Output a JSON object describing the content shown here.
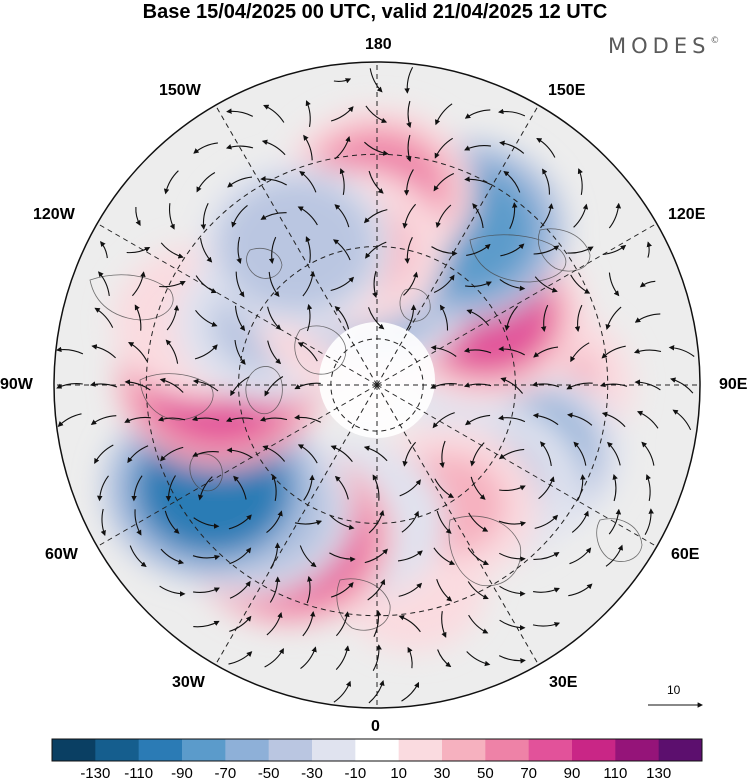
{
  "title": "Base 15/04/2025 00 UTC, valid 21/04/2025 12 UTC",
  "brand": {
    "name": "MODES",
    "mark": "©"
  },
  "longitude_labels": {
    "n180": "180",
    "e150": "150E",
    "e120": "120E",
    "e90": "90E",
    "e60": "60E",
    "e30": "30E",
    "n0": "0",
    "w30": "30W",
    "w60": "60W",
    "w90": "90W",
    "w120": "120W",
    "w150": "150W"
  },
  "reference_vector": {
    "value": "10"
  },
  "colorbar": {
    "ticks": [
      "-130",
      "-110",
      "-90",
      "-70",
      "-50",
      "-30",
      "-10",
      "10",
      "30",
      "50",
      "70",
      "90",
      "110",
      "130"
    ],
    "colors": [
      "#0a3f63",
      "#155e8e",
      "#2b7bb5",
      "#5b9bcb",
      "#8eb0d8",
      "#bac6e1",
      "#e0e3ef",
      "#ffffff",
      "#fadbe0",
      "#f6b1bf",
      "#ee82a7",
      "#e2529a",
      "#c92686",
      "#951479",
      "#5c0f6e"
    ]
  },
  "anomaly_cells": [
    {
      "lon": -150,
      "lat": 55,
      "value": -45
    },
    {
      "lon": -170,
      "lat": 60,
      "value": 35
    },
    {
      "lon": 180,
      "lat": 48,
      "value": 50
    },
    {
      "lon": 152,
      "lat": 52,
      "value": -90
    },
    {
      "lon": 178,
      "lat": 68,
      "value": -55
    },
    {
      "lon": -160,
      "lat": 73,
      "value": 40
    },
    {
      "lon": 123,
      "lat": 62,
      "value": 70
    },
    {
      "lon": 138,
      "lat": 62,
      "value": 35
    },
    {
      "lon": -120,
      "lat": 63,
      "value": -35
    },
    {
      "lon": -110,
      "lat": 50,
      "value": 25
    },
    {
      "lon": -92,
      "lat": 56,
      "value": 75
    },
    {
      "lon": -58,
      "lat": 48,
      "value": -100
    },
    {
      "lon": -45,
      "lat": 52,
      "value": -60
    },
    {
      "lon": -30,
      "lat": 52,
      "value": 75
    },
    {
      "lon": -10,
      "lat": 60,
      "value": -30
    },
    {
      "lon": 30,
      "lat": 60,
      "value": 35
    },
    {
      "lon": 48,
      "lat": 58,
      "value": -40
    },
    {
      "lon": 65,
      "lat": 55,
      "value": -60
    },
    {
      "lon": 90,
      "lat": 55,
      "value": 40
    },
    {
      "lon": 100,
      "lat": 65,
      "value": -35
    },
    {
      "lon": 10,
      "lat": 45,
      "value": 20
    }
  ]
}
